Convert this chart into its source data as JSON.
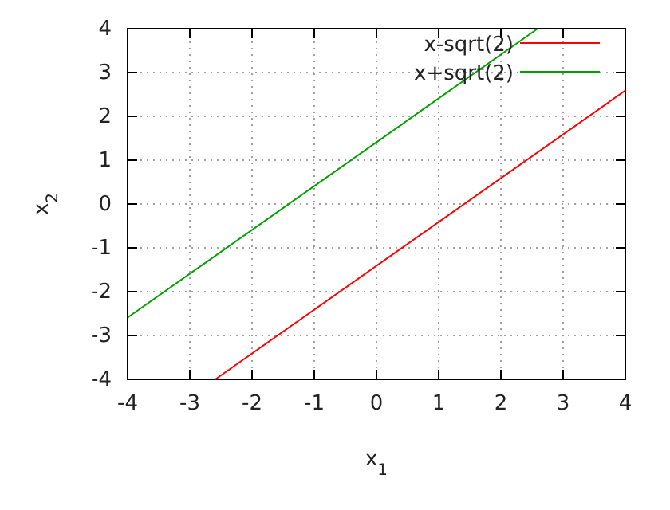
{
  "chart_data": {
    "type": "line",
    "xlabel": "x$_{1}$",
    "ylabel": "x$_{2}$",
    "xlim": [
      -4,
      4
    ],
    "ylim": [
      -4,
      4
    ],
    "xticks": [
      -4,
      -3,
      -2,
      -1,
      0,
      1,
      2,
      3,
      4
    ],
    "yticks": [
      -4,
      -3,
      -2,
      -1,
      0,
      1,
      2,
      3,
      4
    ],
    "grid": true,
    "legend": "top right",
    "marker": "none",
    "line_style": "solid",
    "series": [
      {
        "name": "x-sqrt(2)",
        "color": "#ff0000",
        "x": [
          -2.59,
          4
        ],
        "values": [
          -4,
          2.59
        ]
      },
      {
        "name": "x+sqrt(2)",
        "color": "#00a000",
        "x": [
          -4,
          2.59
        ],
        "values": [
          -2.59,
          4
        ]
      }
    ]
  }
}
